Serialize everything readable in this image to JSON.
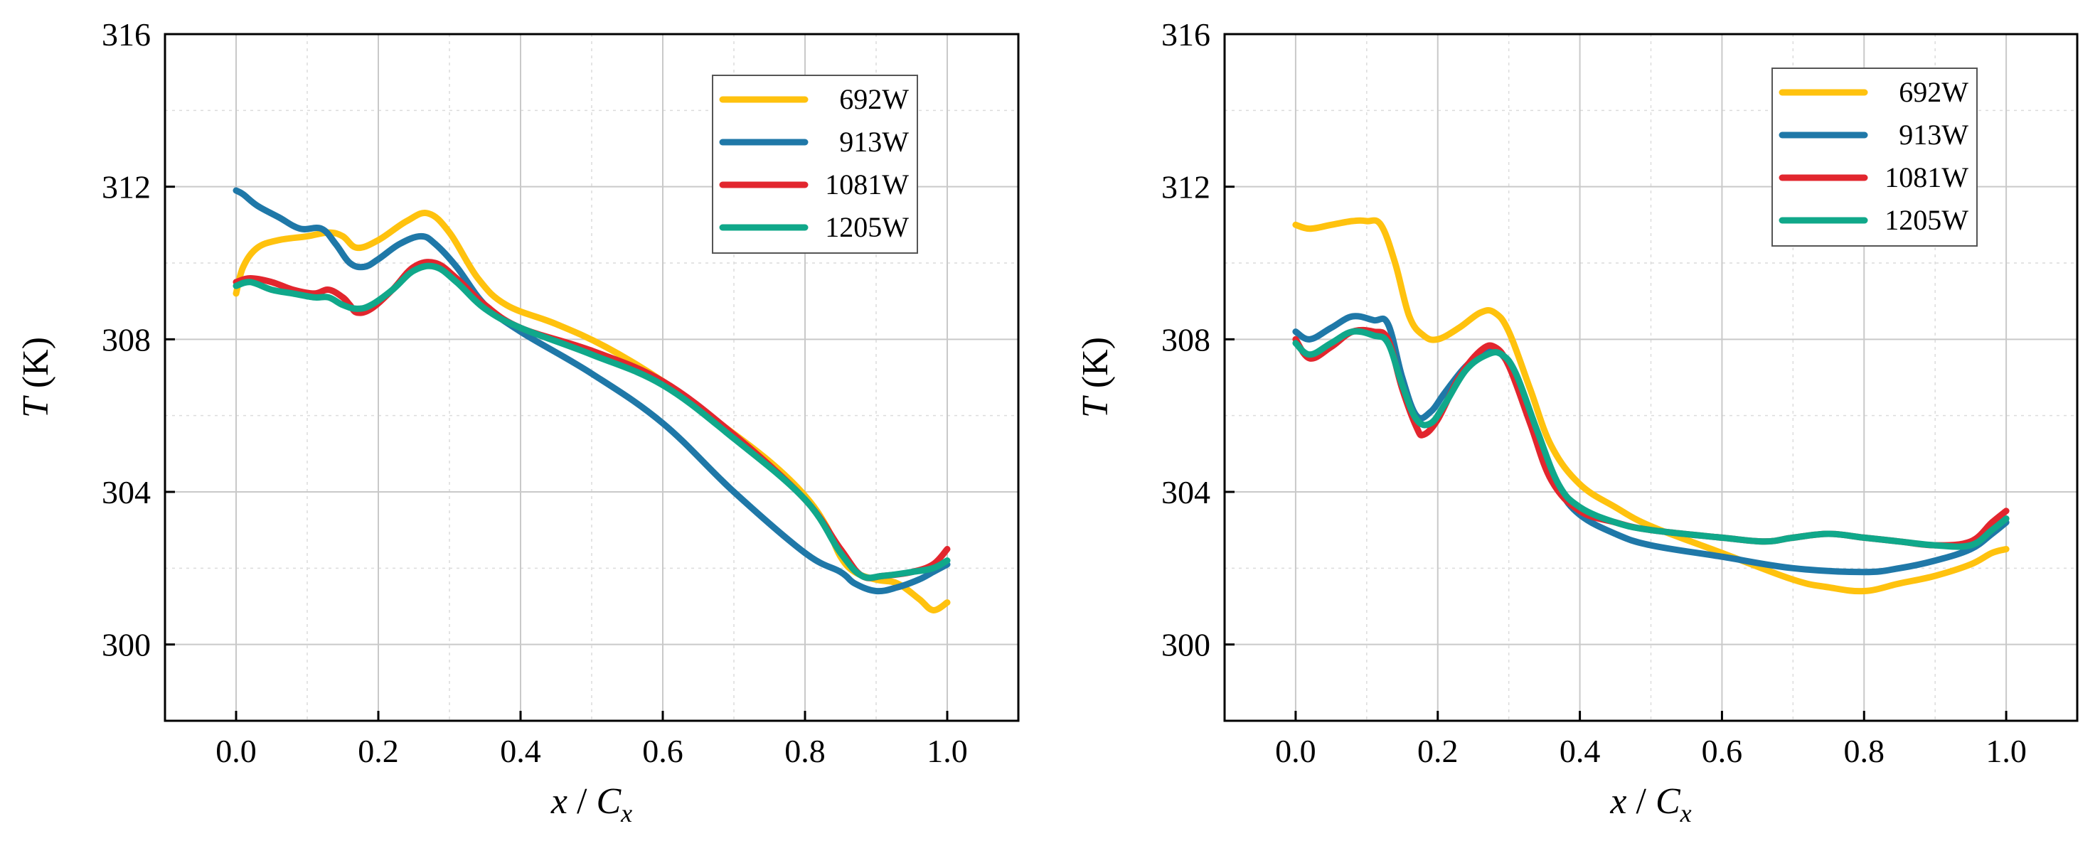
{
  "chart_data": [
    {
      "type": "line",
      "title": "",
      "xlabel": {
        "var": "x",
        "sep": " / ",
        "var2": "C",
        "sub": "x"
      },
      "ylabel": {
        "var": "T",
        "unit": " (K)"
      },
      "xlim": [
        -0.1,
        1.1
      ],
      "ylim": [
        298,
        316
      ],
      "xticks": [
        "0.0",
        "0.2",
        "0.4",
        "0.6",
        "0.8",
        "1.0"
      ],
      "xtick_values": [
        0.0,
        0.2,
        0.4,
        0.6,
        0.8,
        1.0
      ],
      "yticks": [
        "300",
        "304",
        "308",
        "312",
        "316"
      ],
      "ytick_values": [
        300,
        304,
        308,
        312,
        316
      ],
      "grid": true,
      "legend_position": "top-right",
      "series": [
        {
          "name": "692W",
          "color": "#FFC20E",
          "x": [
            0.0,
            0.01,
            0.03,
            0.06,
            0.1,
            0.13,
            0.15,
            0.17,
            0.2,
            0.24,
            0.27,
            0.3,
            0.34,
            0.38,
            0.45,
            0.52,
            0.6,
            0.68,
            0.75,
            0.8,
            0.83,
            0.85,
            0.87,
            0.9,
            0.93,
            0.96,
            0.98,
            1.0
          ],
          "y": [
            309.2,
            309.9,
            310.4,
            310.6,
            310.7,
            310.8,
            310.7,
            310.4,
            310.6,
            311.1,
            311.3,
            310.8,
            309.6,
            308.9,
            308.4,
            307.8,
            306.9,
            305.8,
            304.8,
            303.9,
            303.1,
            302.3,
            301.9,
            301.7,
            301.6,
            301.2,
            300.9,
            301.1
          ]
        },
        {
          "name": "913W",
          "color": "#1F78A8",
          "x": [
            0.0,
            0.01,
            0.03,
            0.06,
            0.09,
            0.12,
            0.14,
            0.16,
            0.18,
            0.2,
            0.23,
            0.26,
            0.28,
            0.31,
            0.35,
            0.4,
            0.5,
            0.6,
            0.7,
            0.8,
            0.85,
            0.87,
            0.9,
            0.93,
            0.96,
            0.98,
            1.0
          ],
          "y": [
            311.9,
            311.8,
            311.5,
            311.2,
            310.9,
            310.9,
            310.5,
            310.0,
            309.9,
            310.1,
            310.5,
            310.7,
            310.5,
            309.9,
            308.9,
            308.2,
            307.1,
            305.8,
            304.0,
            302.4,
            301.9,
            301.6,
            301.4,
            301.5,
            301.7,
            301.9,
            302.1
          ]
        },
        {
          "name": "1081W",
          "color": "#E2262E",
          "x": [
            0.0,
            0.02,
            0.05,
            0.08,
            0.11,
            0.13,
            0.15,
            0.16,
            0.17,
            0.19,
            0.22,
            0.25,
            0.28,
            0.31,
            0.35,
            0.4,
            0.5,
            0.6,
            0.7,
            0.8,
            0.85,
            0.88,
            0.91,
            0.95,
            0.98,
            1.0
          ],
          "y": [
            309.5,
            309.6,
            309.5,
            309.3,
            309.2,
            309.3,
            309.1,
            308.9,
            308.7,
            308.8,
            309.3,
            309.9,
            310.0,
            309.6,
            308.9,
            308.3,
            307.7,
            306.9,
            305.5,
            303.8,
            302.5,
            301.8,
            301.8,
            301.9,
            302.1,
            302.5
          ]
        },
        {
          "name": "1205W",
          "color": "#10A88A",
          "x": [
            0.0,
            0.02,
            0.05,
            0.08,
            0.11,
            0.13,
            0.15,
            0.17,
            0.19,
            0.22,
            0.25,
            0.28,
            0.31,
            0.35,
            0.4,
            0.5,
            0.6,
            0.7,
            0.8,
            0.85,
            0.88,
            0.91,
            0.95,
            0.98,
            1.0
          ],
          "y": [
            309.4,
            309.5,
            309.3,
            309.2,
            309.1,
            309.1,
            308.9,
            308.8,
            308.9,
            309.3,
            309.8,
            309.9,
            309.5,
            308.8,
            308.3,
            307.6,
            306.8,
            305.4,
            303.8,
            302.4,
            301.8,
            301.8,
            301.9,
            302.0,
            302.2
          ]
        }
      ],
      "legend_labels": [
        "692W",
        "913W",
        "1081W",
        "1205W"
      ]
    },
    {
      "type": "line",
      "title": "",
      "xlabel": {
        "var": "x",
        "sep": " / ",
        "var2": "C",
        "sub": "x"
      },
      "ylabel": {
        "var": "T",
        "unit": " (K)"
      },
      "xlim": [
        -0.1,
        1.1
      ],
      "ylim": [
        298,
        316
      ],
      "xticks": [
        "0.0",
        "0.2",
        "0.4",
        "0.6",
        "0.8",
        "1.0"
      ],
      "xtick_values": [
        0.0,
        0.2,
        0.4,
        0.6,
        0.8,
        1.0
      ],
      "yticks": [
        "300",
        "304",
        "308",
        "312",
        "316"
      ],
      "ytick_values": [
        300,
        304,
        308,
        312,
        316
      ],
      "grid": true,
      "legend_position": "top-right",
      "series": [
        {
          "name": "692W",
          "color": "#FFC20E",
          "x": [
            0.0,
            0.02,
            0.05,
            0.08,
            0.1,
            0.12,
            0.14,
            0.16,
            0.18,
            0.2,
            0.23,
            0.26,
            0.28,
            0.3,
            0.33,
            0.36,
            0.4,
            0.45,
            0.5,
            0.6,
            0.7,
            0.75,
            0.8,
            0.85,
            0.9,
            0.95,
            0.98,
            1.0
          ],
          "y": [
            311.0,
            310.9,
            311.0,
            311.1,
            311.1,
            311.0,
            310.0,
            308.6,
            308.1,
            308.0,
            308.3,
            308.7,
            308.7,
            308.2,
            306.7,
            305.2,
            304.2,
            303.6,
            303.1,
            302.4,
            301.7,
            301.5,
            301.4,
            301.6,
            301.8,
            302.1,
            302.4,
            302.5
          ]
        },
        {
          "name": "913W",
          "color": "#1F78A8",
          "x": [
            0.0,
            0.02,
            0.05,
            0.08,
            0.11,
            0.13,
            0.15,
            0.17,
            0.19,
            0.21,
            0.24,
            0.27,
            0.29,
            0.31,
            0.34,
            0.37,
            0.4,
            0.45,
            0.5,
            0.6,
            0.7,
            0.8,
            0.85,
            0.9,
            0.95,
            0.98,
            1.0
          ],
          "y": [
            308.2,
            308.0,
            308.3,
            308.6,
            308.5,
            308.4,
            307.0,
            306.0,
            306.1,
            306.6,
            307.3,
            307.7,
            307.6,
            306.9,
            305.3,
            304.1,
            303.4,
            302.9,
            302.6,
            302.3,
            302.0,
            301.9,
            302.0,
            302.2,
            302.5,
            302.9,
            303.2
          ]
        },
        {
          "name": "1081W",
          "color": "#E2262E",
          "x": [
            0.0,
            0.02,
            0.05,
            0.08,
            0.11,
            0.13,
            0.15,
            0.17,
            0.18,
            0.2,
            0.23,
            0.26,
            0.28,
            0.3,
            0.33,
            0.36,
            0.4,
            0.45,
            0.5,
            0.6,
            0.66,
            0.7,
            0.75,
            0.8,
            0.85,
            0.9,
            0.95,
            0.98,
            1.0
          ],
          "y": [
            308.0,
            307.5,
            307.8,
            308.2,
            308.2,
            308.0,
            306.7,
            305.7,
            305.5,
            305.9,
            307.0,
            307.7,
            307.8,
            307.3,
            305.8,
            304.3,
            303.5,
            303.2,
            303.0,
            302.8,
            302.7,
            302.8,
            302.9,
            302.8,
            302.7,
            302.6,
            302.7,
            303.2,
            303.5
          ]
        },
        {
          "name": "1205W",
          "color": "#10A88A",
          "x": [
            0.0,
            0.02,
            0.05,
            0.08,
            0.11,
            0.13,
            0.15,
            0.17,
            0.19,
            0.21,
            0.24,
            0.27,
            0.29,
            0.31,
            0.34,
            0.37,
            0.4,
            0.45,
            0.5,
            0.6,
            0.66,
            0.7,
            0.75,
            0.8,
            0.85,
            0.9,
            0.95,
            0.98,
            1.0
          ],
          "y": [
            307.9,
            307.6,
            307.9,
            308.2,
            308.1,
            307.9,
            306.8,
            305.9,
            305.8,
            306.3,
            307.2,
            307.6,
            307.6,
            307.1,
            305.6,
            304.2,
            303.6,
            303.2,
            303.0,
            302.8,
            302.7,
            302.8,
            302.9,
            302.8,
            302.7,
            302.6,
            302.6,
            303.0,
            303.3
          ]
        }
      ],
      "legend_labels": [
        "692W",
        "913W",
        "1081W",
        "1205W"
      ]
    }
  ]
}
